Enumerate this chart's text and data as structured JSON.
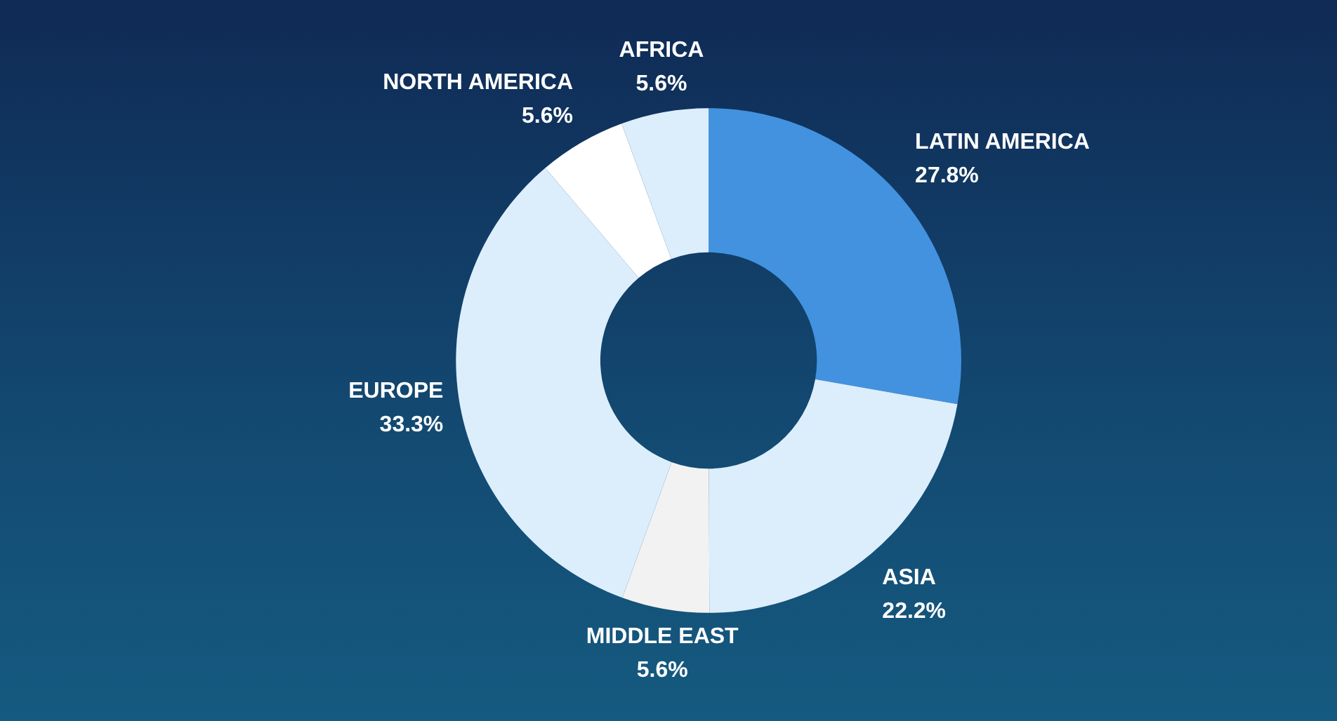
{
  "chart_data": {
    "type": "donut",
    "categories": [
      "LATIN AMERICA",
      "ASIA",
      "MIDDLE EAST",
      "EUROPE",
      "NORTH AMERICA",
      "AFRICA"
    ],
    "values": [
      27.8,
      22.2,
      5.6,
      33.3,
      5.6,
      5.6
    ],
    "colors": [
      "#4292e0",
      "#dceefc",
      "#f2f2f2",
      "#dceefc",
      "#ffffff",
      "#dceefc"
    ],
    "value_labels": [
      "27.8%",
      "22.2%",
      "5.6%",
      "33.3%",
      "5.6%",
      "5.6%"
    ],
    "legend": false
  }
}
